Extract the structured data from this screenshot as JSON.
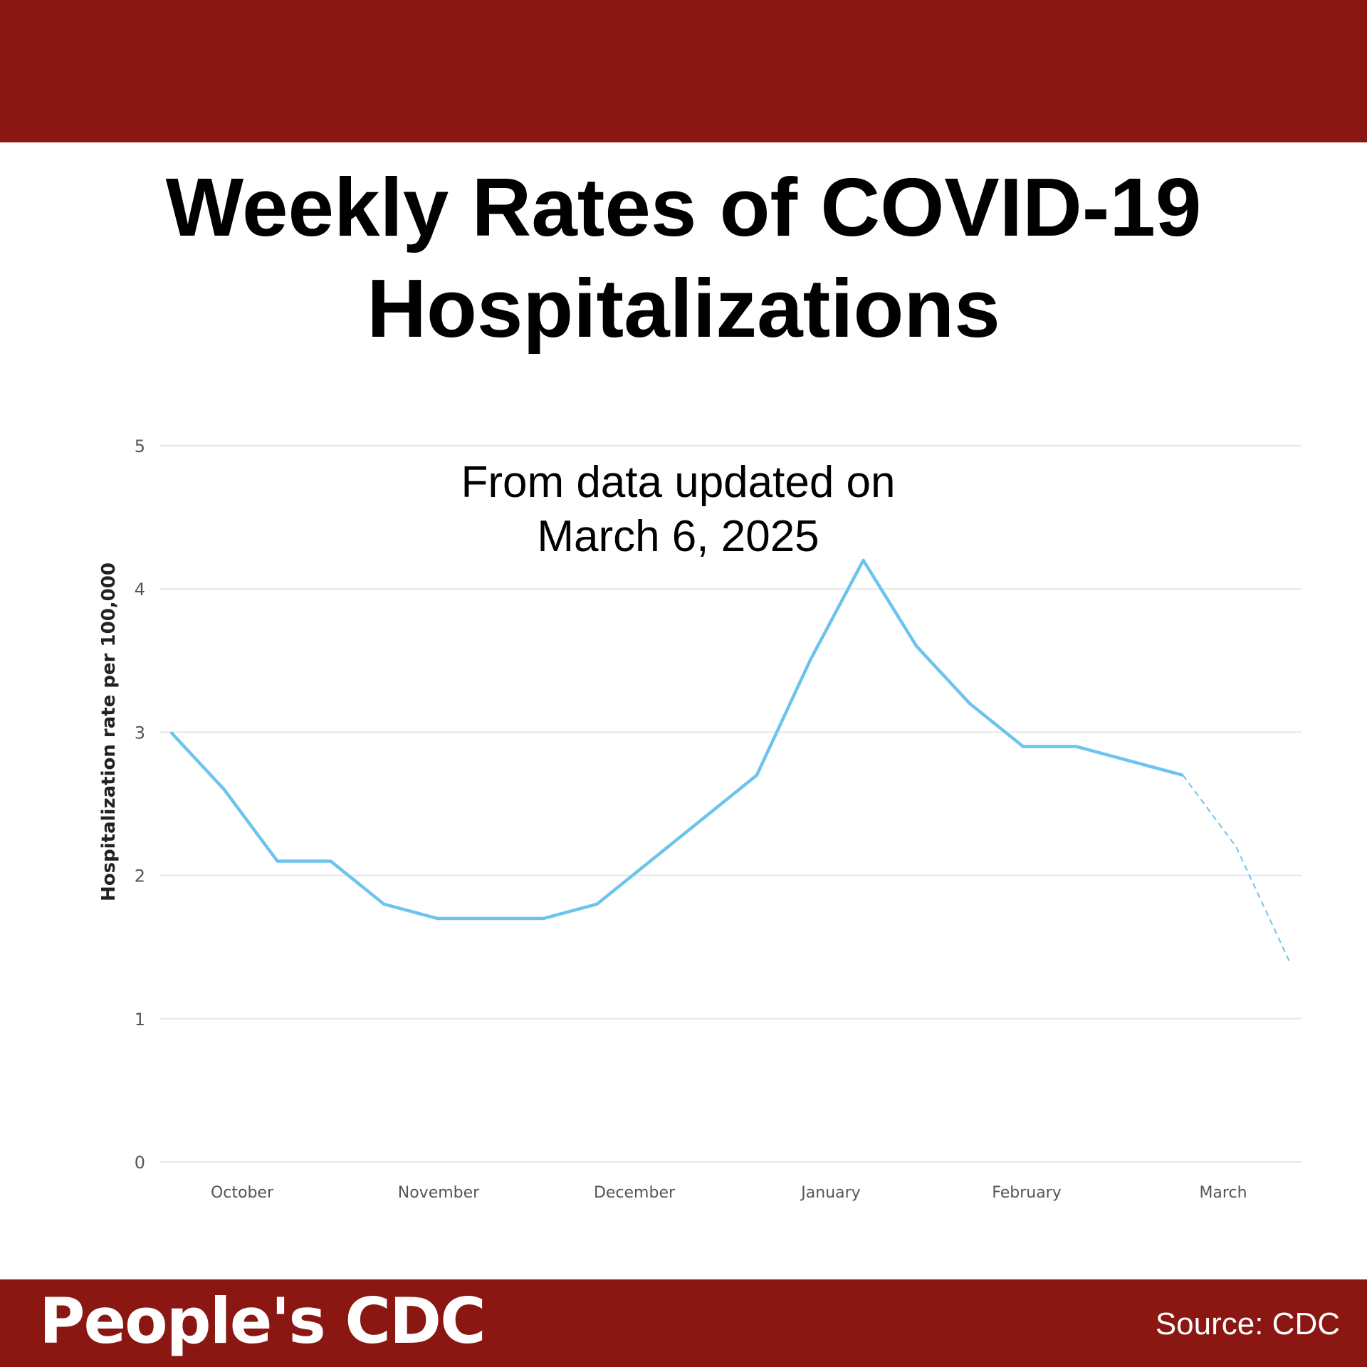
{
  "header": {
    "color": "#8b1713"
  },
  "title_line1": "Weekly Rates of COVID-19",
  "title_line2": "Hospitalizations",
  "chart_data": {
    "type": "line",
    "title": "Weekly Rates of COVID-19 Hospitalizations",
    "annotation_line1": "From data updated on",
    "annotation_line2": "March 6, 2025",
    "ylabel": "Hospitalization rate per 100,000",
    "xlabel": "",
    "ylim": [
      0,
      5
    ],
    "yticks": [
      "0",
      "1",
      "2",
      "3",
      "4",
      "5"
    ],
    "xticks": [
      "October",
      "November",
      "December",
      "January",
      "February",
      "March"
    ],
    "grid": true,
    "line_color": "#6cc4ec",
    "series": [
      {
        "values": [
          3.0,
          2.6,
          2.1,
          2.1,
          1.8,
          1.7,
          1.7,
          1.7,
          1.8,
          2.1,
          2.4,
          2.7,
          3.5,
          4.2,
          3.6,
          3.2,
          2.9,
          2.9,
          2.8,
          2.7
        ],
        "style": "solid"
      },
      {
        "values": [
          2.7,
          2.2,
          1.4
        ],
        "style": "dashed",
        "note_start_index": 19
      }
    ]
  },
  "footer": {
    "brand": "People's CDC",
    "source": "Source: CDC"
  }
}
